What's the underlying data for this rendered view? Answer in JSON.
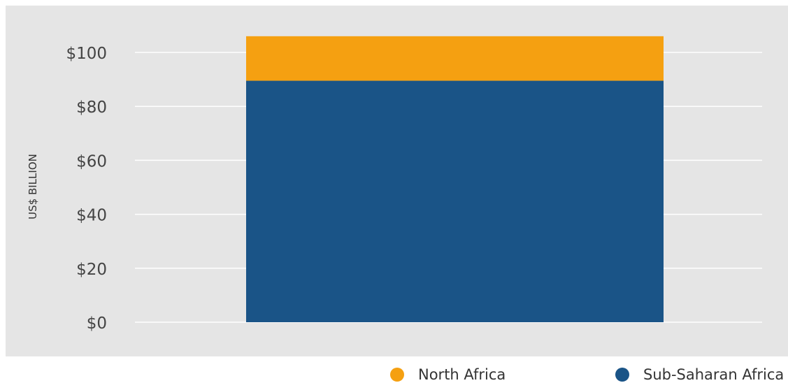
{
  "chart_data": {
    "type": "bar",
    "stacked": true,
    "categories": [
      ""
    ],
    "series": [
      {
        "name": "Sub-Saharan Africa",
        "values": [
          89.5
        ],
        "color": "#1a5487"
      },
      {
        "name": "North Africa",
        "values": [
          16.5
        ],
        "color": "#f5a011"
      }
    ],
    "xlabel": "",
    "ylabel": "US$ BILLION",
    "ylim": [
      0,
      100
    ],
    "yticks": [
      "$0",
      "$20",
      "$40",
      "$60",
      "$80",
      "$100"
    ],
    "grid": true,
    "legend_position": "bottom-right",
    "background_color": "#e5e5e5"
  },
  "legend": {
    "north_africa": "North Africa",
    "sub_saharan_africa": "Sub-Saharan Africa"
  }
}
